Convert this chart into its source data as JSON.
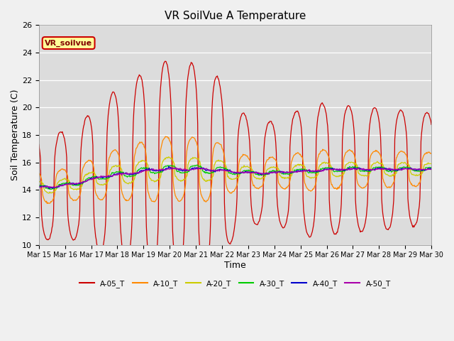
{
  "title": "VR SoilVue A Temperature",
  "xlabel": "Time",
  "ylabel": "Soil Temperature (C)",
  "ylim": [
    10,
    26
  ],
  "fig_bg": "#f0f0f0",
  "plot_bg": "#dcdcdc",
  "label_text": "VR_soilvue",
  "label_bg": "#ffff99",
  "label_border": "#cc0000",
  "series": [
    {
      "name": "A-05_T",
      "color": "#cc0000",
      "base_amp": 5.5,
      "mean": 15.5
    },
    {
      "name": "A-10_T",
      "color": "#ff8800",
      "base_amp": 3.0,
      "mean": 15.2
    },
    {
      "name": "A-20_T",
      "color": "#cccc00",
      "base_amp": 1.8,
      "mean": 15.5
    },
    {
      "name": "A-30_T",
      "color": "#00cc00",
      "base_amp": 1.0,
      "mean": 15.5
    },
    {
      "name": "A-40_T",
      "color": "#0000cc",
      "base_amp": 0.6,
      "mean": 15.2
    },
    {
      "name": "A-50_T",
      "color": "#aa00aa",
      "base_amp": 0.4,
      "mean": 15.3
    }
  ],
  "xtick_labels": [
    "Mar 15",
    "Mar 16",
    "Mar 17",
    "Mar 18",
    "Mar 19",
    "Mar 20",
    "Mar 21",
    "Mar 22",
    "Mar 23",
    "Mar 24",
    "Mar 25",
    "Mar 26",
    "Mar 27",
    "Mar 28",
    "Mar 29",
    "Mar 30"
  ],
  "daily_amps": [
    0.7,
    0.75,
    1.05,
    1.2,
    1.45,
    1.4,
    1.42,
    0.85,
    0.65,
    0.75,
    0.9,
    0.85,
    0.82,
    0.8,
    0.75
  ],
  "daily_means": [
    14.2,
    14.5,
    15.0,
    15.2,
    15.5,
    15.5,
    15.5,
    15.3,
    15.2,
    15.3,
    15.4,
    15.5,
    15.5,
    15.5,
    15.5
  ]
}
